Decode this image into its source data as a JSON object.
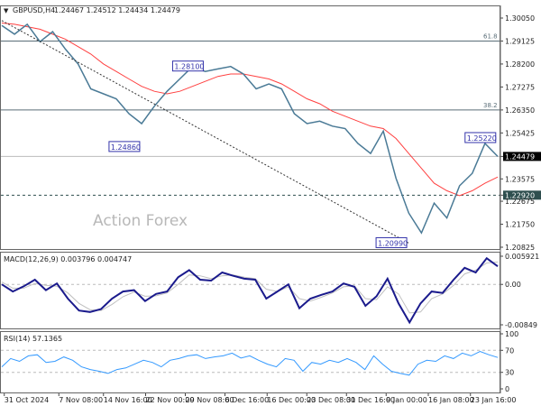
{
  "header": {
    "symbol": "GBPUSD,H4",
    "ohlc": "1.24467 1.24512 1.24434 1.24479"
  },
  "watermark": "Action Forex",
  "colors": {
    "price": "#4a7a96",
    "ma": "#ff4040",
    "macd": "#1a1a8c",
    "signal": "#c0c0c0",
    "rsi": "#3399ff",
    "label_border": "#3333aa"
  },
  "chart_data": [
    {
      "type": "line",
      "panel": "price",
      "ylim": [
        1.20825,
        1.3005
      ],
      "yticks": [
        "1.30050",
        "1.29125",
        "1.28200",
        "1.27275",
        "1.26350",
        "1.25425",
        "1.24479",
        "1.23575",
        "1.22920",
        "1.22675",
        "1.21750",
        "1.20825"
      ],
      "ytick_values": [
        1.3005,
        1.29125,
        1.282,
        1.27275,
        1.2635,
        1.25425,
        1.24479,
        1.23575,
        1.2292,
        1.22675,
        1.2175,
        1.20825
      ],
      "current_price": 1.24479,
      "support_level": 1.2292,
      "fib_levels": [
        {
          "label": "61.8",
          "value": 1.29125
        },
        {
          "label": "38.2",
          "value": 1.2635
        }
      ],
      "trendline": {
        "from": [
          0,
          1.2995
        ],
        "to": [
          32,
          1.2099
        ]
      },
      "annotations": [
        {
          "text": "1.28100",
          "x": 14,
          "value": 1.281
        },
        {
          "text": "1.24860",
          "x": 9,
          "value": 1.2486
        },
        {
          "text": "1.25220",
          "x": 37,
          "value": 1.2522
        },
        {
          "text": "1.20990",
          "x": 30,
          "value": 1.2099
        }
      ],
      "series": [
        {
          "values": [
            1.2975,
            1.294,
            1.298,
            1.291,
            1.295,
            1.288,
            1.282,
            1.272,
            1.27,
            1.268,
            1.262,
            1.258,
            1.265,
            1.271,
            1.276,
            1.281,
            1.279,
            1.28,
            1.281,
            1.278,
            1.272,
            1.274,
            1.272,
            1.262,
            1.258,
            1.259,
            1.257,
            1.256,
            1.25,
            1.246,
            1.255,
            1.236,
            1.222,
            1.214,
            1.226,
            1.22,
            1.233,
            1.238,
            1.25,
            1.2448
          ]
        },
        {
          "values": [
            1.2985,
            1.298,
            1.297,
            1.296,
            1.294,
            1.292,
            1.289,
            1.286,
            1.282,
            1.279,
            1.276,
            1.273,
            1.271,
            1.27,
            1.271,
            1.273,
            1.275,
            1.277,
            1.278,
            1.278,
            1.277,
            1.276,
            1.274,
            1.271,
            1.268,
            1.266,
            1.263,
            1.261,
            1.259,
            1.257,
            1.256,
            1.252,
            1.246,
            1.24,
            1.234,
            1.231,
            1.229,
            1.231,
            1.234,
            1.2365
          ]
        }
      ]
    },
    {
      "type": "line",
      "panel": "macd",
      "title": "MACD(12,26,9) 0.003796 0.004747",
      "ylim": [
        -0.00849,
        0.005921
      ],
      "yticks": [
        "0.005921",
        "0.00",
        "-0.00849"
      ],
      "ytick_values": [
        0.005921,
        0,
        -0.00849
      ],
      "series": [
        {
          "values": [
            0.0,
            -0.0015,
            -0.0004,
            0.001,
            -0.0012,
            0.0002,
            -0.003,
            -0.0055,
            -0.0058,
            -0.0052,
            -0.003,
            -0.0015,
            -0.0012,
            -0.0035,
            -0.002,
            -0.0015,
            0.0015,
            0.003,
            0.001,
            0.0008,
            0.0025,
            0.0018,
            0.0012,
            0.001,
            -0.003,
            -0.0015,
            0.0,
            -0.005,
            -0.003,
            -0.0022,
            -0.0015,
            0.0002,
            -0.0005,
            -0.0045,
            -0.0025,
            0.0012,
            -0.004,
            -0.008,
            -0.004,
            -0.0015,
            -0.0018,
            0.001,
            0.0035,
            0.0025,
            0.0055,
            0.0038
          ]
        },
        {
          "values": [
            0.0005,
            -0.0008,
            -0.0008,
            0.0002,
            -0.0002,
            -0.0004,
            -0.0018,
            -0.004,
            -0.0053,
            -0.0055,
            -0.0042,
            -0.0026,
            -0.0016,
            -0.0025,
            -0.0024,
            -0.0018,
            0.0,
            0.002,
            0.0018,
            0.0012,
            0.0018,
            0.002,
            0.0015,
            0.0012,
            -0.001,
            -0.0015,
            -0.0005,
            -0.003,
            -0.0035,
            -0.0027,
            -0.0018,
            -0.0005,
            -0.0003,
            -0.003,
            -0.0032,
            -0.0005,
            -0.002,
            -0.006,
            -0.0058,
            -0.003,
            -0.002,
            -0.0002,
            0.0022,
            0.003,
            0.0045,
            0.0047
          ]
        }
      ]
    },
    {
      "type": "line",
      "panel": "rsi",
      "title": "RSI(14) 57.1365",
      "ylim": [
        0,
        100
      ],
      "yticks": [
        "100",
        "70",
        "30",
        "0"
      ],
      "ytick_values": [
        100,
        70,
        30,
        0
      ],
      "series": [
        {
          "values": [
            40,
            55,
            50,
            60,
            62,
            48,
            50,
            58,
            52,
            40,
            35,
            32,
            28,
            35,
            38,
            45,
            52,
            48,
            40,
            52,
            55,
            60,
            62,
            55,
            58,
            60,
            65,
            56,
            60,
            52,
            45,
            40,
            55,
            52,
            32,
            48,
            45,
            52,
            48,
            55,
            48,
            35,
            60,
            45,
            32,
            28,
            25,
            45,
            52,
            50,
            60,
            55,
            65,
            60,
            68,
            62,
            57
          ]
        }
      ]
    }
  ],
  "xaxis": {
    "ticks": [
      {
        "label": "31 Oct 2024",
        "pos": 0.005
      },
      {
        "label": "7 Nov 08:00",
        "pos": 0.115
      },
      {
        "label": "14 Nov 16:00",
        "pos": 0.205
      },
      {
        "label": "22 Nov 00:00",
        "pos": 0.29
      },
      {
        "label": "29 Nov 08:00",
        "pos": 0.37
      },
      {
        "label": "6 Dec 16:00",
        "pos": 0.45
      },
      {
        "label": "16 Dec 00:00",
        "pos": 0.535
      },
      {
        "label": "23 Dec 08:00",
        "pos": 0.615
      },
      {
        "label": "31 Dec 16:00",
        "pos": 0.695
      },
      {
        "label": "9 Jan 00:00",
        "pos": 0.775
      },
      {
        "label": "16 Jan 08:00",
        "pos": 0.86
      },
      {
        "label": "23 Jan 16:00",
        "pos": 0.945
      }
    ]
  }
}
